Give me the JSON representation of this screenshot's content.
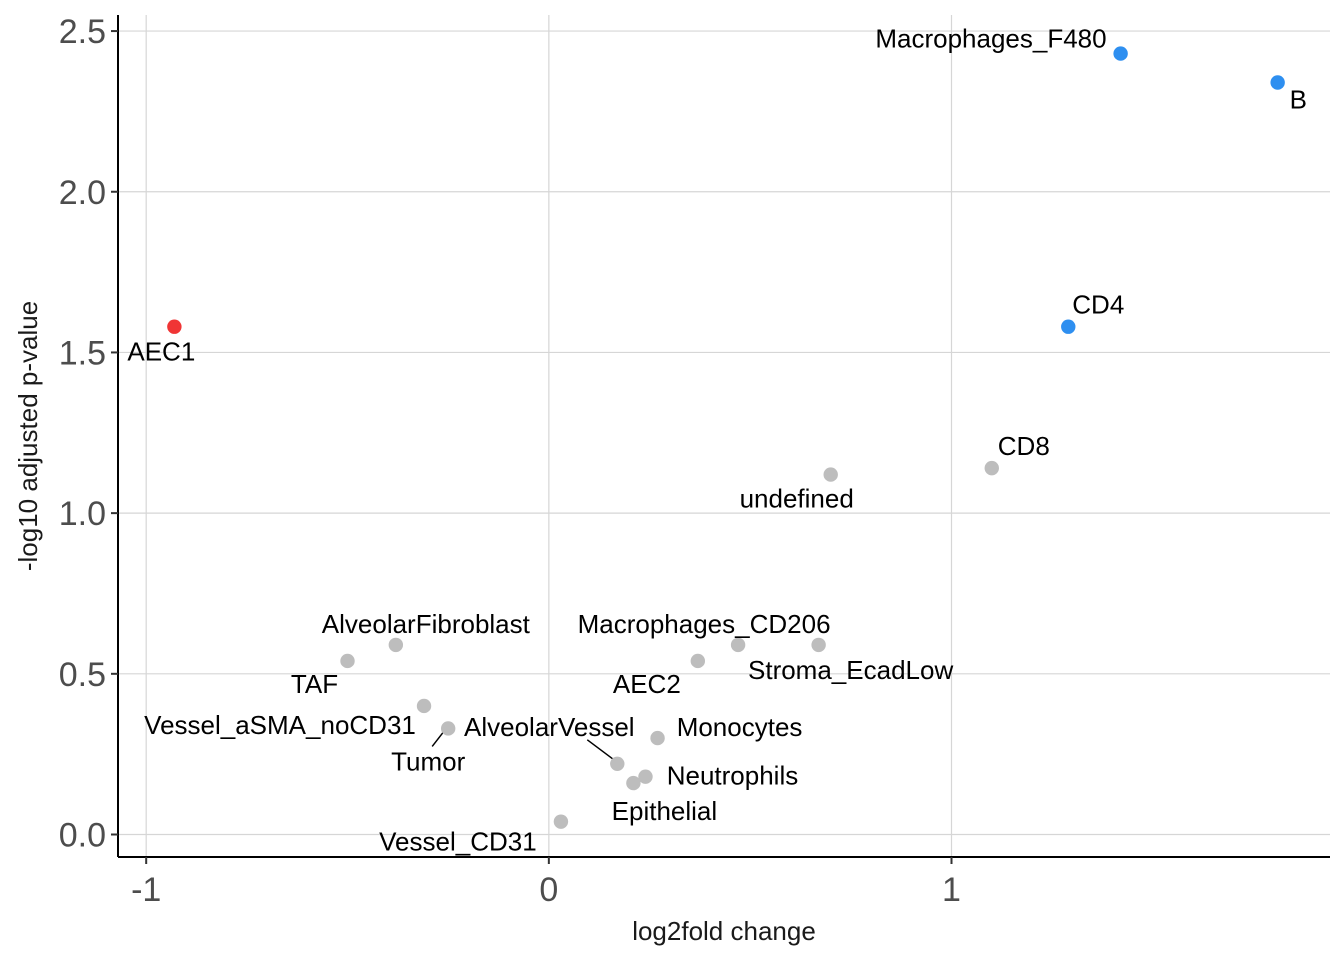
{
  "chart_data": {
    "type": "scatter",
    "xlabel": "log2fold change",
    "ylabel": "-log10 adjusted p-value",
    "xlim": [
      -1.07,
      1.94
    ],
    "ylim": [
      -0.07,
      2.55
    ],
    "x_ticks": [
      -1,
      0,
      1
    ],
    "x_tick_labels": [
      "-1",
      "0",
      "1"
    ],
    "y_ticks": [
      0.0,
      0.5,
      1.0,
      1.5,
      2.0,
      2.5
    ],
    "y_tick_labels": [
      "0.0",
      "0.5",
      "1.0",
      "1.5",
      "2.0",
      "2.5"
    ],
    "grid": true,
    "legend": "none",
    "colors": {
      "up": "#2e8ff0",
      "down": "#f03535",
      "ns": "#bdbdbd"
    },
    "points": [
      {
        "label": "Macrophages_F480",
        "x": 1.42,
        "y": 2.43,
        "group": "up"
      },
      {
        "label": "B",
        "x": 1.81,
        "y": 2.34,
        "group": "up"
      },
      {
        "label": "CD4",
        "x": 1.29,
        "y": 1.58,
        "group": "up"
      },
      {
        "label": "AEC1",
        "x": -0.93,
        "y": 1.58,
        "group": "down"
      },
      {
        "label": "CD8",
        "x": 1.1,
        "y": 1.14,
        "group": "ns"
      },
      {
        "label": "undefined",
        "x": 0.7,
        "y": 1.12,
        "group": "ns"
      },
      {
        "label": "AlveolarFibroblast",
        "x": -0.38,
        "y": 0.59,
        "group": "ns"
      },
      {
        "label": "Macrophages_CD206",
        "x": 0.47,
        "y": 0.59,
        "group": "ns"
      },
      {
        "label": "Stroma_EcadLow",
        "x": 0.67,
        "y": 0.59,
        "group": "ns"
      },
      {
        "label": "TAF",
        "x": -0.5,
        "y": 0.54,
        "group": "ns"
      },
      {
        "label": "AEC2",
        "x": 0.37,
        "y": 0.54,
        "group": "ns"
      },
      {
        "label": "Vessel_aSMA_noCD31",
        "x": -0.31,
        "y": 0.4,
        "group": "ns"
      },
      {
        "label": "Tumor",
        "x": -0.25,
        "y": 0.33,
        "group": "ns"
      },
      {
        "label": "Monocytes",
        "x": 0.27,
        "y": 0.3,
        "group": "ns"
      },
      {
        "label": "AlveolarVessel",
        "x": 0.17,
        "y": 0.22,
        "group": "ns"
      },
      {
        "label": "Neutrophils",
        "x": 0.24,
        "y": 0.18,
        "group": "ns"
      },
      {
        "label": "Epithelial",
        "x": 0.21,
        "y": 0.16,
        "group": "ns"
      },
      {
        "label": "Vessel_CD31",
        "x": 0.03,
        "y": 0.04,
        "group": "ns"
      }
    ]
  }
}
